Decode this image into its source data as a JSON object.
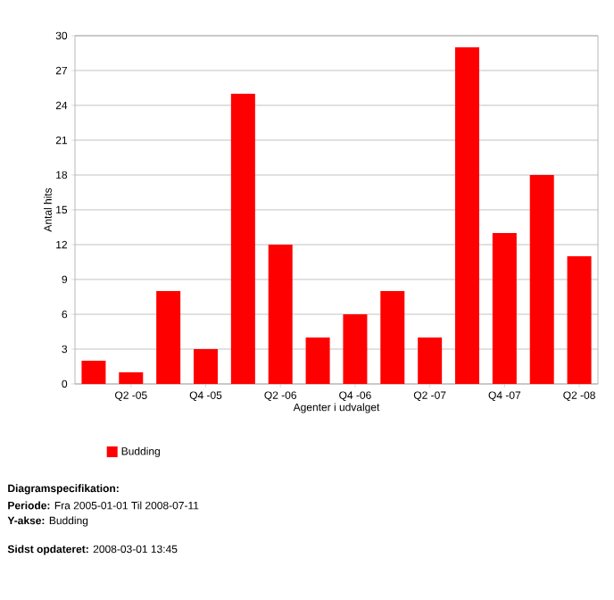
{
  "chart_data": {
    "type": "bar",
    "xlabel": "Agenter i udvalget",
    "ylabel": "Antal hits",
    "categories": [
      null,
      "Q2 -05",
      null,
      "Q4 -05",
      null,
      "Q2 -06",
      null,
      "Q4 -06",
      null,
      "Q2 -07",
      null,
      "Q4 -07",
      null,
      "Q2 -08"
    ],
    "series": [
      {
        "name": "Budding",
        "color": "#ff0000",
        "values": [
          2,
          1,
          8,
          3,
          25,
          12,
          4,
          6,
          8,
          4,
          29,
          13,
          18,
          11
        ]
      }
    ],
    "ylim": [
      0,
      30
    ],
    "yticks": [
      0,
      3,
      6,
      9,
      12,
      15,
      18,
      21,
      24,
      27,
      30
    ],
    "grid": "y",
    "legend": "bottom",
    "annotations": [
      "**Diagramspecifikation:**",
      "**Periode:** Fra 2005-01-01 Til 2008-07-11",
      "**Y-akse:** Budding",
      "**Sidst opdateret:** 2008-03-01 13:45"
    ]
  }
}
